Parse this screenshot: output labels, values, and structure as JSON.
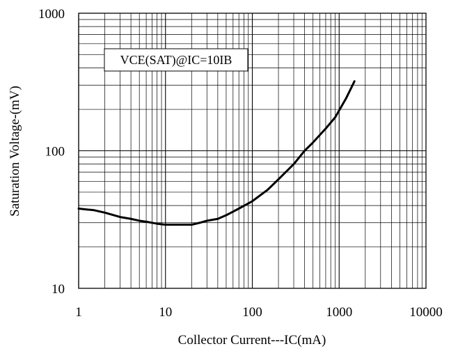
{
  "chart_data": {
    "type": "line",
    "title": "",
    "xlabel": "Collector Current---IC(mA)",
    "ylabel": "Saturation Voltage-(mV)",
    "xscale": "log",
    "yscale": "log",
    "xlim": [
      1,
      10000
    ],
    "ylim": [
      10,
      1000
    ],
    "xticks": [
      1,
      10,
      100,
      1000,
      10000
    ],
    "xtick_labels": [
      "1",
      "10",
      "100",
      "1000",
      "10000"
    ],
    "yticks": [
      10,
      100,
      1000
    ],
    "ytick_labels": [
      "10",
      "100",
      "1000"
    ],
    "grid": true,
    "annotation": "VCE(SAT)@IC=10IB",
    "series": [
      {
        "x": [
          1,
          1.2,
          1.5,
          2,
          3,
          4,
          5,
          6,
          8,
          10,
          15,
          20,
          25,
          30,
          40,
          50,
          70,
          100,
          150,
          200,
          300,
          400,
          500,
          700,
          900,
          1200,
          1500
        ],
        "y": [
          38,
          37.5,
          37,
          35.5,
          33,
          32,
          31,
          30.5,
          29.5,
          29,
          29,
          29,
          30,
          31,
          32,
          34,
          38,
          43,
          52,
          62,
          80,
          100,
          115,
          145,
          175,
          240,
          320
        ]
      }
    ]
  }
}
